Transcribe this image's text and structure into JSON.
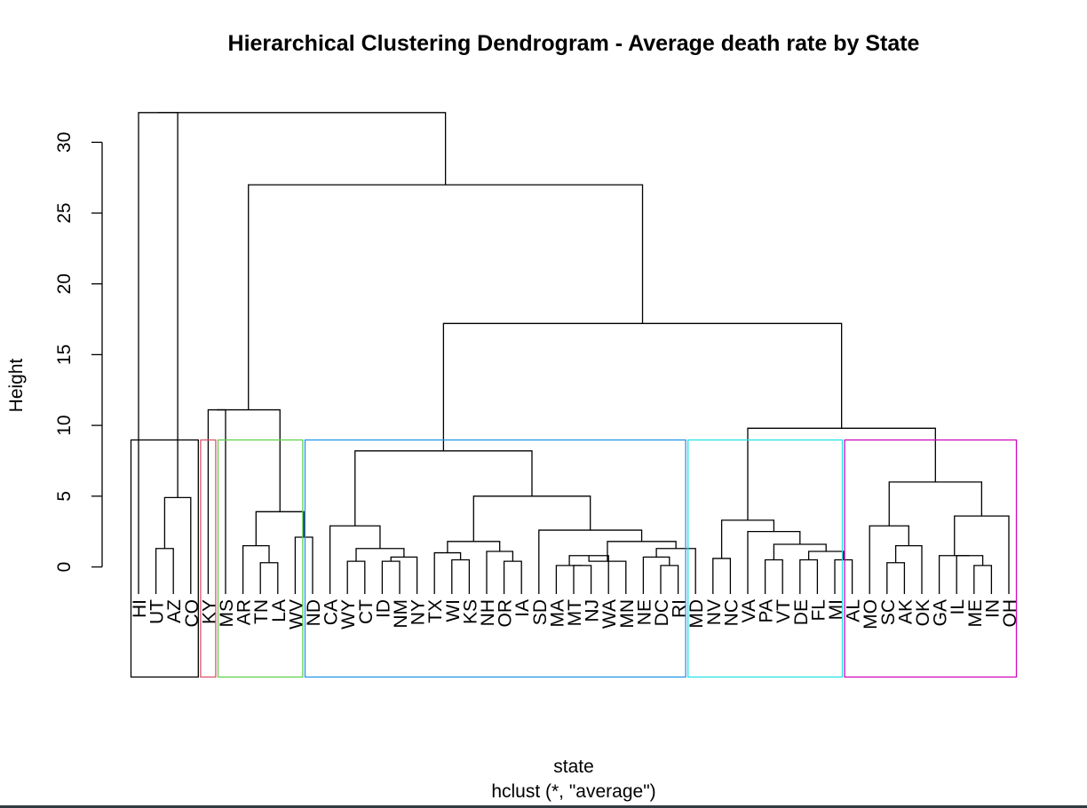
{
  "chart_data": {
    "type": "dendrogram",
    "title": "Hierarchical Clustering Dendrogram - Average death rate by State",
    "xlabel": "state",
    "sublabel": "hclust (*, \"average\")",
    "ylabel": "Height",
    "ylim": [
      0,
      32
    ],
    "yticks": [
      0,
      5,
      10,
      15,
      20,
      25,
      30
    ],
    "leaves": [
      "HI",
      "UT",
      "AZ",
      "CO",
      "KY",
      "MS",
      "AR",
      "TN",
      "LA",
      "WV",
      "ND",
      "CA",
      "WY",
      "CT",
      "ID",
      "NM",
      "NY",
      "TX",
      "WI",
      "KS",
      "NH",
      "OR",
      "IA",
      "SD",
      "MA",
      "MT",
      "NJ",
      "WA",
      "MN",
      "NE",
      "DC",
      "RI",
      "MD",
      "NV",
      "NC",
      "VA",
      "PA",
      "VT",
      "DE",
      "FL",
      "MI",
      "AL",
      "MO",
      "SC",
      "AK",
      "OK",
      "GA",
      "IL",
      "ME",
      "IN",
      "OH"
    ],
    "merges": [
      {
        "left": "UT",
        "right": "AZ",
        "height": 1.3
      },
      {
        "left": "n0",
        "right": "CO",
        "height": 4.9
      },
      {
        "left": "HI",
        "right": "n1",
        "height": 32.1
      },
      {
        "left": "TN",
        "right": "LA",
        "height": 0.3
      },
      {
        "left": "AR",
        "right": "n3",
        "height": 1.5
      },
      {
        "left": "WV",
        "right": "ND",
        "height": 2.1
      },
      {
        "left": "n4",
        "right": "n5",
        "height": 3.9
      },
      {
        "left": "KY",
        "right": "MS",
        "height": 11.1
      },
      {
        "left": "n7",
        "right": "n6",
        "height": 11.1
      },
      {
        "left": "WY",
        "right": "CT",
        "height": 0.4
      },
      {
        "left": "ID",
        "right": "NM",
        "height": 0.4
      },
      {
        "left": "n10",
        "right": "NY",
        "height": 0.7
      },
      {
        "left": "n9",
        "right": "n11",
        "height": 1.3
      },
      {
        "left": "CA",
        "right": "n12",
        "height": 2.9
      },
      {
        "left": "WI",
        "right": "KS",
        "height": 0.5
      },
      {
        "left": "TX",
        "right": "n14",
        "height": 1.0
      },
      {
        "left": "OR",
        "right": "IA",
        "height": 0.4
      },
      {
        "left": "NH",
        "right": "n16",
        "height": 1.1
      },
      {
        "left": "n15",
        "right": "n17",
        "height": 1.8
      },
      {
        "left": "MT",
        "right": "NJ",
        "height": 0.1
      },
      {
        "left": "MA",
        "right": "n19",
        "height": 0.1
      },
      {
        "left": "n20",
        "right": "WA",
        "height": 0.8
      },
      {
        "left": "MN",
        "right": "n21",
        "height": 0.4
      },
      {
        "left": "DC",
        "right": "RI",
        "height": 0.1
      },
      {
        "left": "NE",
        "right": "n23",
        "height": 0.7
      },
      {
        "left": "MD",
        "right": "n24",
        "height": 1.3
      },
      {
        "left": "n22",
        "right": "n25",
        "height": 1.8
      },
      {
        "left": "SD",
        "right": "n26",
        "height": 2.6
      },
      {
        "left": "n18",
        "right": "n27",
        "height": 5.0
      },
      {
        "left": "n13",
        "right": "n28",
        "height": 8.2
      },
      {
        "left": "NV",
        "right": "NC",
        "height": 0.6
      },
      {
        "left": "PA",
        "right": "VT",
        "height": 0.5
      },
      {
        "left": "DE",
        "right": "FL",
        "height": 0.5
      },
      {
        "left": "MI",
        "right": "AL",
        "height": 0.5
      },
      {
        "left": "n32",
        "right": "n33",
        "height": 1.1
      },
      {
        "left": "n31",
        "right": "n34",
        "height": 1.6
      },
      {
        "left": "VA",
        "right": "n35",
        "height": 2.5
      },
      {
        "left": "n30",
        "right": "n36",
        "height": 3.3
      },
      {
        "left": "SC",
        "right": "AK",
        "height": 0.3
      },
      {
        "left": "n38",
        "right": "OK",
        "height": 1.5
      },
      {
        "left": "MO",
        "right": "n39",
        "height": 2.9
      },
      {
        "left": "ME",
        "right": "IN",
        "height": 0.1
      },
      {
        "left": "IL",
        "right": "n41",
        "height": 0.8
      },
      {
        "left": "GA",
        "right": "n42",
        "height": 0.8
      },
      {
        "left": "n43",
        "right": "OH",
        "height": 3.6
      },
      {
        "left": "n40",
        "right": "n44",
        "height": 6.0
      },
      {
        "left": "n37",
        "right": "n45",
        "height": 9.8
      },
      {
        "left": "n29",
        "right": "n46",
        "height": 17.2
      },
      {
        "left": "n8",
        "right": "n47",
        "height": 27.0
      },
      {
        "left": "n2",
        "right": "n48",
        "height": 32.1
      }
    ],
    "cluster_boxes": [
      {
        "first": "HI",
        "last": "CO",
        "color": "#000000"
      },
      {
        "first": "KY",
        "last": "KY",
        "color": "#df536b"
      },
      {
        "first": "MS",
        "last": "WV",
        "color": "#61d04f"
      },
      {
        "first": "ND",
        "last": "RI",
        "color": "#2297e6"
      },
      {
        "first": "MD",
        "last": "MI",
        "color": "#28e2e5"
      },
      {
        "first": "AL",
        "last": "OH",
        "color": "#cd0bbc"
      }
    ]
  }
}
